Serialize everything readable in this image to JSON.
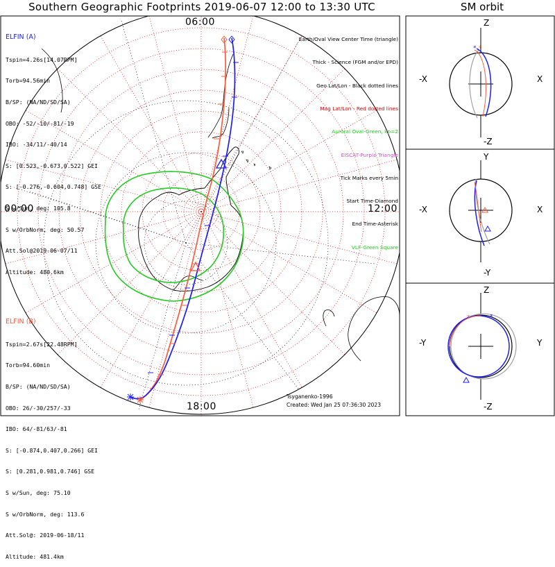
{
  "title": "Southern Geographic Footprints 2019-06-07 12:00 to 13:30 UTC",
  "sm_title": "SM orbit",
  "local_time_labels": {
    "top": "06:00",
    "left": "00:00",
    "right": "12:00",
    "bottom": "18:00"
  },
  "elfin_a": {
    "header": "ELFIN (A)",
    "color": "#1c1cff",
    "lines": [
      "Tspin=4.26s[14.07RPM]",
      "Torb=94.56min",
      "B/SP: (NA/ND/SD/SA)",
      "OBO: -52/-10/-81/-19",
      "IBO: -34/11/-40/14",
      "S: [0.523,-0.673,0.522] GEI",
      "S: [-0.276,-0.604,0.748] GSE",
      "S w/Sun, deg: 105.8",
      "S w/OrbNorm, deg: 50.57",
      "Att.Sol@2019-06-07/11",
      "Altitude: 480.6km"
    ]
  },
  "elfin_b": {
    "header": "ELFIN (B)",
    "color": "#ff5a3c",
    "lines": [
      "Tspin=2.67s[22.48RPM]",
      "Torb=94.60min",
      "B/SP: (NA/ND/SD/SA)",
      "OBO: 26/-30/257/-33",
      "IBO: 64/-81/63/-81",
      "S: [-0.874,0.407,0.266] GEI",
      "S: [0.281,0.981,0.746] GSE",
      "S w/Sun, deg: 75.10",
      "S w/OrbNorm, deg: 113.6",
      "Att.Sol@: 2019-06-18/11",
      "Altitude: 481.4km"
    ]
  },
  "legend": [
    {
      "text": "Earth/Oval View Center Time (triangle)",
      "color": "#000000"
    },
    {
      "text": "Thick - Science (FGM and/or EPD)",
      "color": "#000000"
    },
    {
      "text": "Geo Lat/Lon - Black dotted lines",
      "color": "#000000"
    },
    {
      "text": "Mag Lat/Lon - Red dotted lines",
      "color": "#e00000"
    },
    {
      "text": "Auroral Oval-Green, kp=2",
      "color": "#22cc22"
    },
    {
      "text": "EISCAT-Purple Triangle",
      "color": "#cc55cc"
    },
    {
      "text": "Tick Marks every 5min",
      "color": "#000000"
    },
    {
      "text": "Start Time-Diamond",
      "color": "#000000"
    },
    {
      "text": "End Time-Asterisk",
      "color": "#000000"
    },
    {
      "text": "VLF-Green Square",
      "color": "#22cc22"
    }
  ],
  "model": "Tsyganenko-1996",
  "created": "Created: Wed Jan 25 07:36:30 2023",
  "sm_panels": [
    {
      "top": "Z",
      "bottom": "-Z",
      "left": "-X",
      "right": "X"
    },
    {
      "top": "Y",
      "bottom": "-Y",
      "left": "-X",
      "right": "X"
    },
    {
      "top": "Z",
      "bottom": "-Z",
      "left": "-Y",
      "right": "Y"
    }
  ],
  "colors": {
    "aurora": "#22cc22",
    "mag_grid": "#e00000",
    "elfin_a": "#1c1cff",
    "elfin_b": "#ff5a3c"
  }
}
